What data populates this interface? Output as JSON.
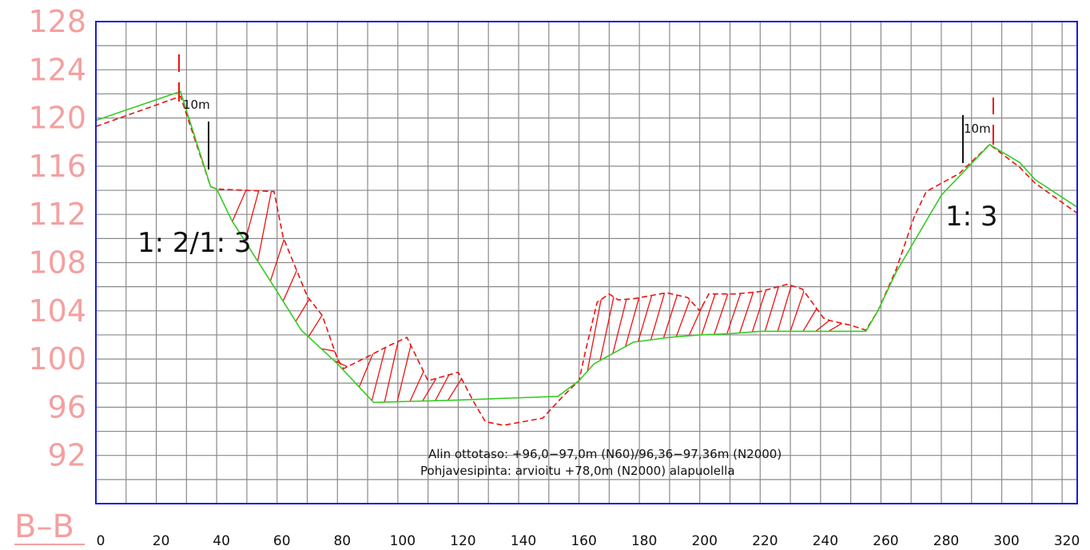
{
  "section_title": "B–B",
  "y_axis": {
    "labels": [
      "128",
      "124",
      "120",
      "116",
      "112",
      "108",
      "104",
      "100",
      "96",
      "92"
    ]
  },
  "x_axis": {
    "labels": [
      "0",
      "20",
      "40",
      "60",
      "80",
      "100",
      "120",
      "140",
      "160",
      "180",
      "200",
      "220",
      "240",
      "260",
      "280",
      "300",
      "320"
    ]
  },
  "annotations": {
    "slope_left": "1: 2/1: 3",
    "slope_right": "1: 3",
    "dist_left": "10m",
    "dist_right": "10m",
    "note_line1": "Alin ottotaso:  +96,0−97,0m  (N60)/96,36−97,36m  (N2000)",
    "note_line2": "Pohjavesipinta:  arvioitu  +78,0m  (N2000)  alapuolella"
  },
  "colors": {
    "grid": "#8a8a8a",
    "frame": "#1a1adc",
    "design_line": "#33cc22",
    "terrain_line": "#ee1111",
    "axis_label": "#f4a0a0"
  },
  "chart_data": {
    "type": "line",
    "xlim": [
      0,
      325
    ],
    "ylim": [
      88,
      128
    ],
    "series": [
      {
        "values": [
          [
            0,
            119.8
          ],
          [
            28,
            122.2
          ],
          [
            38,
            114.3
          ],
          [
            40,
            114.1
          ],
          [
            45,
            111.5
          ],
          [
            60,
            105.6
          ],
          [
            68,
            102.4
          ],
          [
            80,
            99.6
          ],
          [
            92,
            96.4
          ],
          [
            120,
            96.6
          ],
          [
            153,
            96.9
          ],
          [
            160,
            98.2
          ],
          [
            165,
            99.6
          ],
          [
            178,
            101.4
          ],
          [
            190,
            101.8
          ],
          [
            200,
            102.0
          ],
          [
            210,
            102.1
          ],
          [
            220,
            102.3
          ],
          [
            255,
            102.3
          ],
          [
            259,
            104.0
          ],
          [
            265,
            107.2
          ],
          [
            280,
            113.6
          ],
          [
            296,
            117.8
          ],
          [
            306,
            116.3
          ],
          [
            311,
            114.9
          ],
          [
            325,
            112.6
          ]
        ]
      },
      {
        "values": [
          [
            0,
            119.3
          ],
          [
            28,
            121.8
          ],
          [
            38,
            114.3
          ],
          [
            40,
            114.1
          ],
          [
            59,
            113.9
          ],
          [
            62,
            110.1
          ],
          [
            70,
            105.2
          ],
          [
            75,
            103.6
          ],
          [
            80,
            100.0
          ],
          [
            82,
            99.2
          ],
          [
            90,
            100.2
          ],
          [
            97,
            101.1
          ],
          [
            103,
            101.8
          ],
          [
            110,
            98.2
          ],
          [
            120,
            98.9
          ],
          [
            125,
            96.5
          ],
          [
            129,
            94.8
          ],
          [
            135,
            94.5
          ],
          [
            148,
            95.1
          ],
          [
            155,
            97.0
          ],
          [
            160,
            98.2
          ],
          [
            162,
            100.5
          ],
          [
            166,
            104.7
          ],
          [
            170,
            105.4
          ],
          [
            173,
            104.9
          ],
          [
            178,
            105.0
          ],
          [
            189,
            105.5
          ],
          [
            196,
            105.1
          ],
          [
            200,
            104.0
          ],
          [
            203,
            105.4
          ],
          [
            212,
            105.4
          ],
          [
            220,
            105.6
          ],
          [
            229,
            106.2
          ],
          [
            234,
            105.8
          ],
          [
            241,
            103.4
          ],
          [
            243,
            103.2
          ],
          [
            250,
            102.8
          ],
          [
            255,
            102.4
          ],
          [
            259,
            104.0
          ],
          [
            265,
            107.4
          ],
          [
            271,
            111.8
          ],
          [
            275,
            113.9
          ],
          [
            286,
            115.4
          ],
          [
            296,
            117.8
          ],
          [
            306,
            115.9
          ],
          [
            311,
            114.6
          ],
          [
            325,
            112.1
          ]
        ]
      }
    ]
  }
}
